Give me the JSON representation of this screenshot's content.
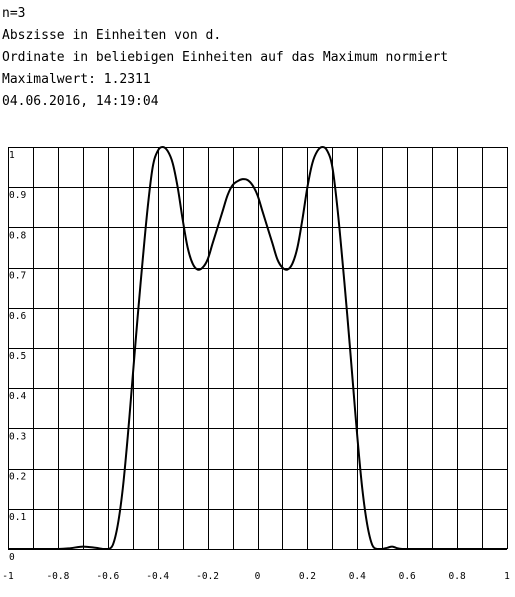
{
  "header": {
    "line1": "n=3",
    "line2": "Abszisse in Einheiten von d.",
    "line3": "Ordinate in beliebigen Einheiten auf das Maximum normiert",
    "line4": "Maximalwert: 1.2311",
    "line5": "04.06.2016, 14:19:04"
  },
  "colors": {
    "curve": "#000000",
    "grid": "#000000",
    "background": "#ffffff"
  },
  "chart_data": {
    "type": "line",
    "title": "",
    "xlabel": "",
    "ylabel": "",
    "xlim": [
      -1,
      1
    ],
    "ylim": [
      0,
      1
    ],
    "grid": true,
    "legend": "none",
    "x_tick_values": [
      -1,
      -0.8,
      -0.6,
      -0.4,
      -0.2,
      0,
      0.2,
      0.4,
      0.6,
      0.8,
      1
    ],
    "x_tick_labels": [
      "-1",
      "-0.8",
      "-0.6",
      "-0.4",
      "-0.2",
      "0",
      "0.2",
      "0.4",
      "0.6",
      "0.8",
      "1"
    ],
    "y_tick_values": [
      0,
      0.1,
      0.2,
      0.3,
      0.4,
      0.5,
      0.6,
      0.7,
      0.8,
      0.9,
      1
    ],
    "y_tick_labels": [
      "0",
      "0.1",
      "0.2",
      "0.3",
      "0.4",
      "0.5",
      "0.6",
      "0.7",
      "0.8",
      "0.9",
      "1"
    ],
    "series": [
      {
        "x": [
          -1.0,
          -0.9,
          -0.8,
          -0.75,
          -0.7,
          -0.65,
          -0.62,
          -0.6,
          -0.58,
          -0.56,
          -0.54,
          -0.52,
          -0.5,
          -0.48,
          -0.46,
          -0.44,
          -0.42,
          -0.4,
          -0.38,
          -0.36,
          -0.34,
          -0.32,
          -0.3,
          -0.28,
          -0.26,
          -0.24,
          -0.22,
          -0.2,
          -0.18,
          -0.16,
          -0.14,
          -0.12,
          -0.1,
          -0.08,
          -0.06,
          -0.04,
          -0.02,
          0.0,
          0.02,
          0.04,
          0.06,
          0.08,
          0.1,
          0.12,
          0.14,
          0.16,
          0.18,
          0.2,
          0.22,
          0.24,
          0.26,
          0.28,
          0.3,
          0.32,
          0.34,
          0.36,
          0.38,
          0.4,
          0.42,
          0.44,
          0.46,
          0.48,
          0.5,
          0.52,
          0.54,
          0.56,
          0.58,
          0.6,
          0.62,
          0.65,
          0.7,
          0.75,
          0.8,
          0.9,
          1.0
        ],
        "y": [
          0.0,
          0.0,
          0.0,
          0.002,
          0.006,
          0.003,
          0.0,
          0.0,
          0.01,
          0.06,
          0.15,
          0.28,
          0.43,
          0.58,
          0.72,
          0.85,
          0.95,
          0.99,
          1.0,
          0.99,
          0.96,
          0.9,
          0.82,
          0.75,
          0.71,
          0.695,
          0.7,
          0.72,
          0.76,
          0.8,
          0.84,
          0.88,
          0.905,
          0.915,
          0.92,
          0.918,
          0.905,
          0.88,
          0.84,
          0.8,
          0.76,
          0.72,
          0.7,
          0.695,
          0.71,
          0.75,
          0.82,
          0.9,
          0.96,
          0.99,
          1.0,
          0.99,
          0.95,
          0.85,
          0.72,
          0.58,
          0.43,
          0.28,
          0.15,
          0.06,
          0.01,
          0.0,
          0.0,
          0.003,
          0.006,
          0.002,
          0.0,
          0.0,
          0.0,
          0.0,
          0.0,
          0.0,
          0.0,
          0.0,
          0.0
        ]
      }
    ]
  }
}
